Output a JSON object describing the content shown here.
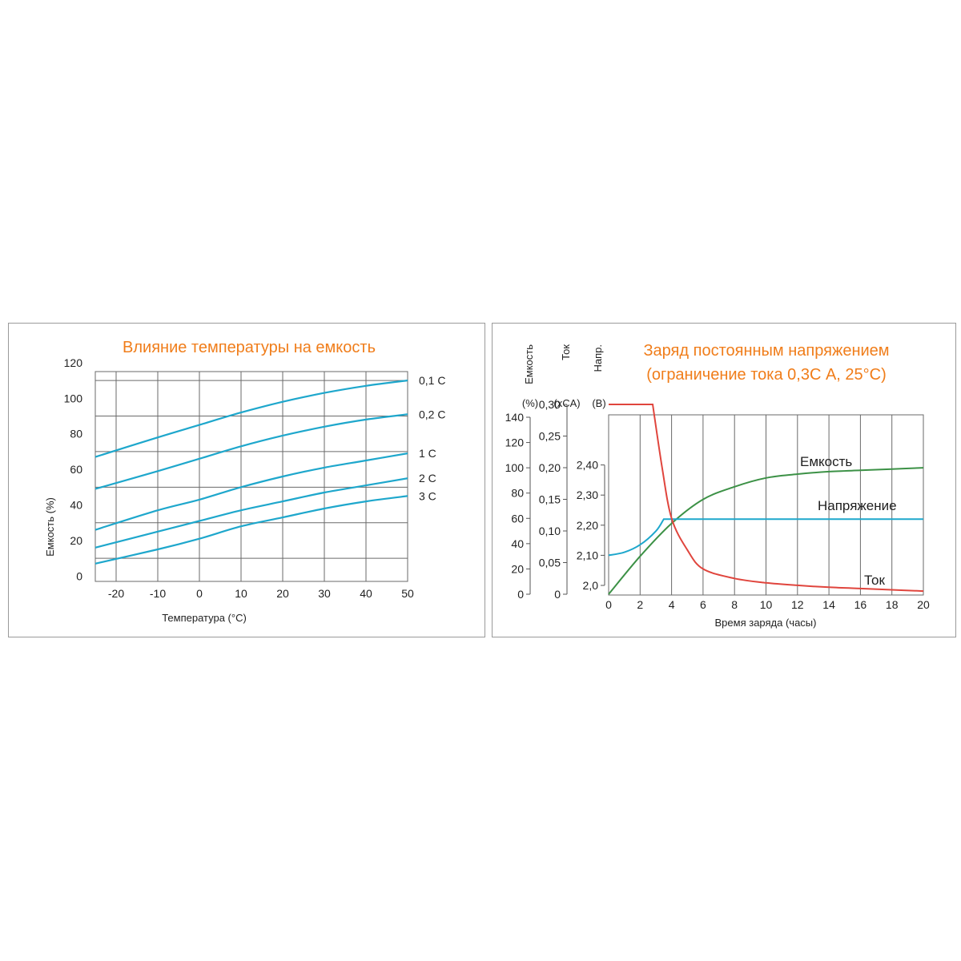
{
  "colors": {
    "title": "#f07d1a",
    "blue": "#1ea7cc",
    "red": "#e0453d",
    "green": "#3c9146",
    "grid": "#6a6a6a"
  },
  "chart_data": [
    {
      "type": "line",
      "title": "Влияние температуры на емкость",
      "xlabel": "Температура (°C)",
      "ylabel": "Емкость (%)",
      "xlim": [
        -25,
        50
      ],
      "ylim": [
        -3,
        115
      ],
      "x_ticks": [
        "-20",
        "-10",
        "0",
        "10",
        "20",
        "30",
        "40",
        "50"
      ],
      "y_ticks": [
        "0",
        "20",
        "40",
        "60",
        "80",
        "100",
        "120"
      ],
      "grid": true,
      "series": [
        {
          "name": "0,1 C",
          "x": [
            -25,
            -10,
            0,
            10,
            20,
            30,
            40,
            50
          ],
          "y": [
            67,
            78,
            85,
            92,
            98,
            103,
            107,
            110
          ]
        },
        {
          "name": "0,2 C",
          "x": [
            -25,
            -10,
            0,
            10,
            20,
            30,
            40,
            50
          ],
          "y": [
            49,
            59,
            66,
            73,
            79,
            84,
            88,
            91
          ]
        },
        {
          "name": "1 C",
          "x": [
            -25,
            -10,
            0,
            10,
            20,
            30,
            40,
            50
          ],
          "y": [
            26,
            37,
            43,
            50,
            56,
            61,
            65,
            69
          ]
        },
        {
          "name": "2 C",
          "x": [
            -25,
            -10,
            0,
            10,
            20,
            30,
            40,
            50
          ],
          "y": [
            16,
            25,
            31,
            37,
            42,
            47,
            51,
            55
          ]
        },
        {
          "name": "3 C",
          "x": [
            -25,
            -10,
            0,
            10,
            20,
            30,
            40,
            50
          ],
          "y": [
            7,
            15,
            21,
            28,
            33,
            38,
            42,
            45
          ]
        }
      ]
    },
    {
      "type": "line",
      "title": "Заряд постоянным напряжением",
      "subtitle": "(ограничение тока 0,3С А, 25°C)",
      "xlabel": "Время заряда (часы)",
      "xlim": [
        0,
        20
      ],
      "x_ticks": [
        "0",
        "2",
        "4",
        "6",
        "8",
        "10",
        "12",
        "14",
        "16",
        "18",
        "20"
      ],
      "grid": true,
      "axes": [
        {
          "title": "Емкость",
          "unit": "(%)",
          "ticks": [
            "0",
            "20",
            "40",
            "60",
            "80",
            "100",
            "120",
            "140"
          ],
          "range": [
            0,
            140
          ]
        },
        {
          "title": "Ток",
          "unit": "(xCA)",
          "ticks": [
            "0",
            "0,05",
            "0,10",
            "0,15",
            "0,20",
            "0,25",
            "0,30"
          ],
          "range": [
            0,
            0.35
          ]
        },
        {
          "title": "Напр.",
          "unit": "(B)",
          "ticks": [
            "2,0",
            "2,10",
            "2,20",
            "2,30",
            "2,40"
          ],
          "range": [
            1.94,
            2.5
          ]
        }
      ],
      "series": [
        {
          "name": "Емкость",
          "axis": "Емкость (%)",
          "x": [
            0,
            2,
            4,
            6,
            8,
            10,
            12,
            14,
            16,
            18,
            20
          ],
          "y": [
            0,
            30,
            56,
            75,
            85,
            92,
            95,
            97,
            98,
            99,
            100
          ]
        },
        {
          "name": "Напряжение",
          "axis": "Напр. (B)",
          "x": [
            0,
            1,
            2,
            3,
            3.5,
            4,
            20
          ],
          "y": [
            2.1,
            2.11,
            2.135,
            2.18,
            2.22,
            2.22,
            2.22
          ]
        },
        {
          "name": "Ток",
          "axis": "Ток (xCA)",
          "x": [
            0,
            2.8,
            3.4,
            4,
            5,
            6,
            8,
            10,
            12,
            14,
            16,
            18,
            20
          ],
          "y": [
            0.3,
            0.3,
            0.2,
            0.12,
            0.07,
            0.04,
            0.025,
            0.018,
            0.014,
            0.011,
            0.009,
            0.007,
            0.005
          ]
        }
      ]
    }
  ]
}
